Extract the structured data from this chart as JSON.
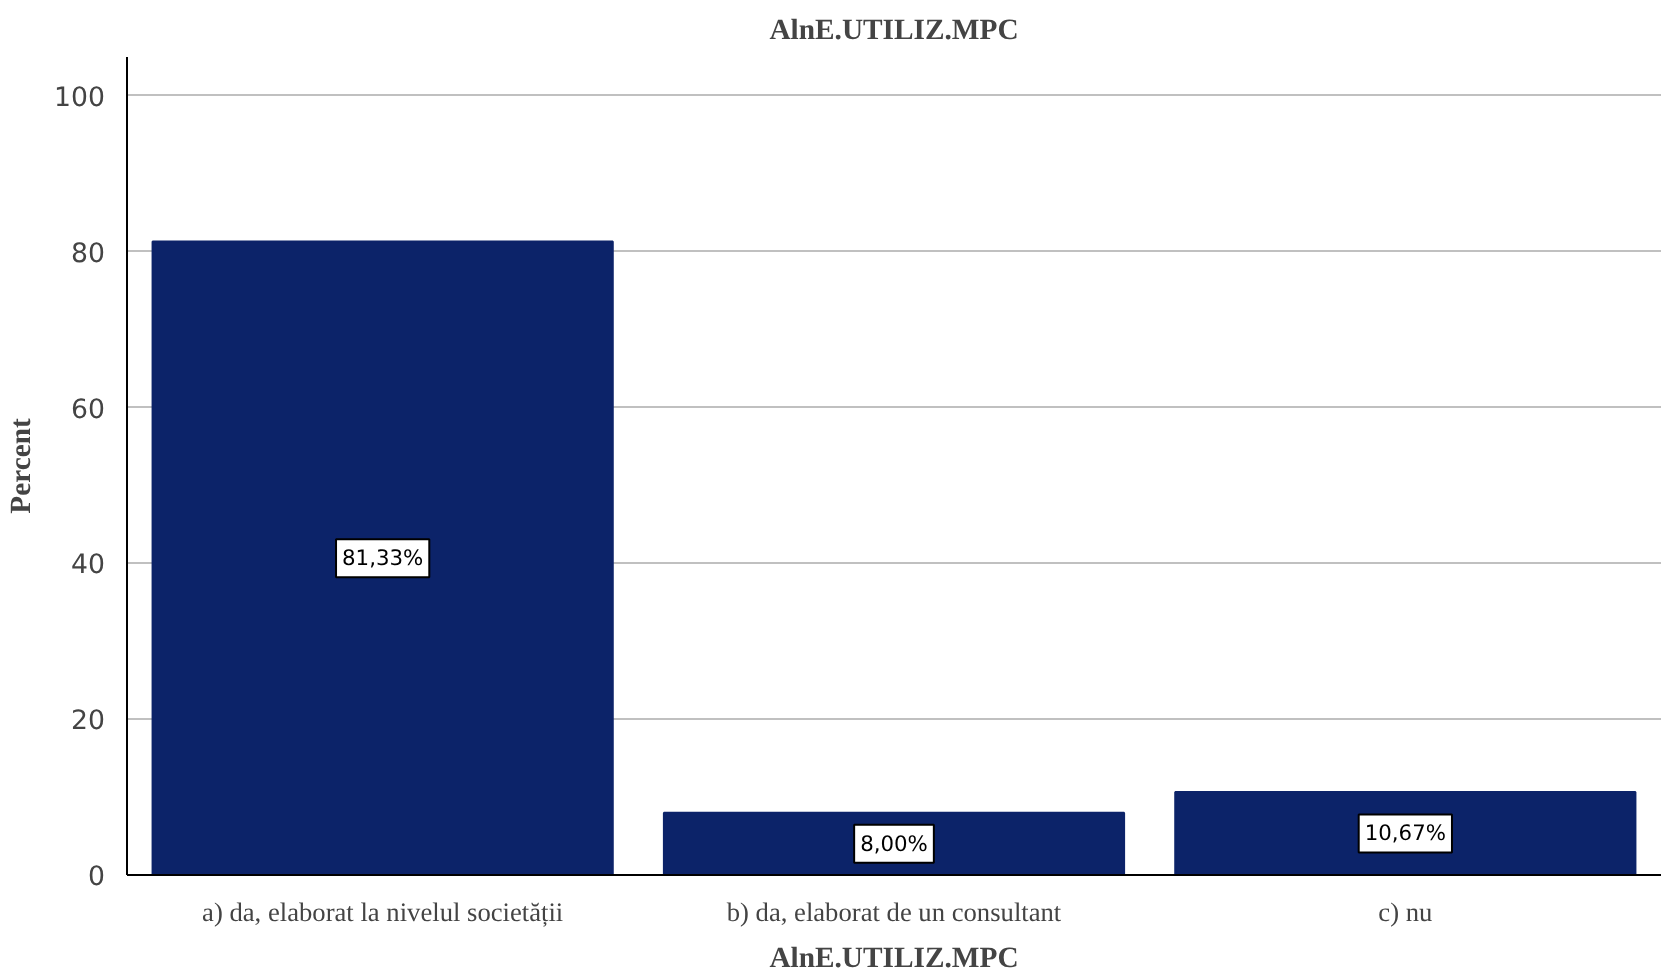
{
  "chart_data": {
    "type": "bar",
    "title": "AlnE.UTILIZ.MPC",
    "xlabel": "AlnE.UTILIZ.MPC",
    "ylabel": "Percent",
    "categories": [
      "a) da, elaborat la nivelul societății",
      "b) da, elaborat de un consultant",
      "c) nu"
    ],
    "values": [
      81.33,
      8.0,
      10.67
    ],
    "value_labels": [
      "81,33%",
      "8,00%",
      "10,67%"
    ],
    "color": "#0c2369",
    "ylim": [
      0,
      105
    ],
    "yticks": [
      0,
      20,
      40,
      60,
      80,
      100
    ],
    "grid": "y"
  }
}
